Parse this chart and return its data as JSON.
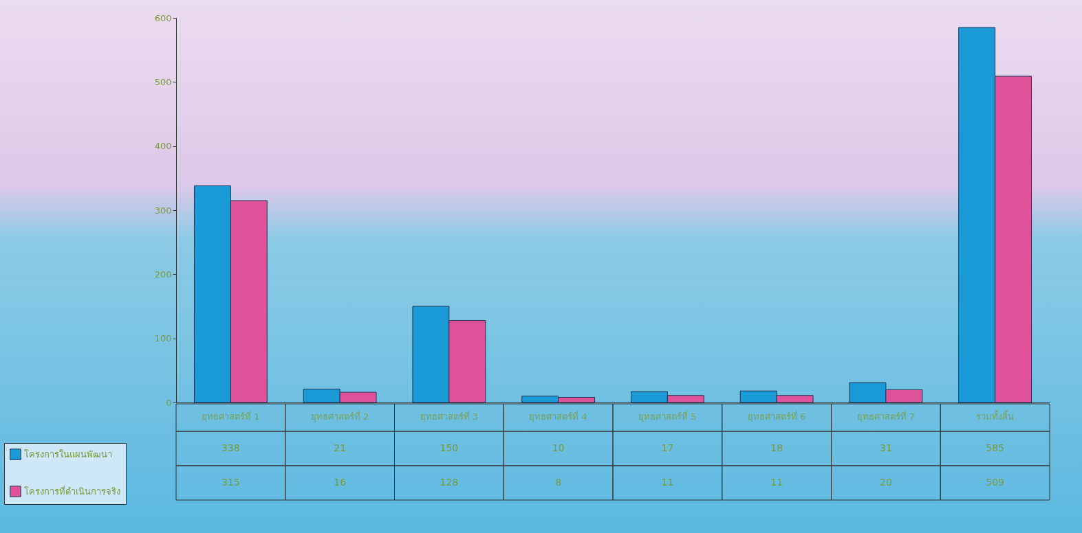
{
  "chart_data": {
    "type": "bar",
    "categories": [
      "ยุทธศาสตร์ที่ 1",
      "ยุทธศาสตร์ที่ 2",
      "ยุทธศาสตร์ที่ 3",
      "ยุทธศาสตร์ที่ 4",
      "ยุทธศาสตร์ที่ 5",
      "ยุทธศาสตร์ที่ 6",
      "ยุทธศาสตร์ที่ 7",
      "รวมทั้งสิ้น"
    ],
    "series": [
      {
        "name": "โครงการในแผนพัฒนา",
        "color": "#1a9ad6",
        "values": [
          338,
          21,
          150,
          10,
          17,
          18,
          31,
          585
        ]
      },
      {
        "name": "โครงการที่ดำเนินการจริง",
        "color": "#e0529a",
        "values": [
          315,
          16,
          128,
          8,
          11,
          11,
          20,
          509
        ]
      }
    ],
    "ylim": [
      0,
      600
    ],
    "yticks": [
      0,
      100,
      200,
      300,
      400,
      500,
      600
    ],
    "data_labels": true,
    "legend": "bottom left"
  }
}
